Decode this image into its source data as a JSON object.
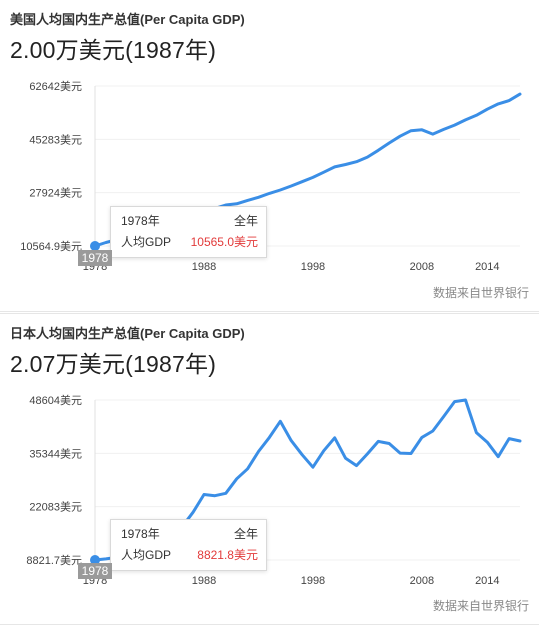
{
  "source_label": "数据来自世界银行",
  "panels": [
    {
      "title": "美国人均国内生产总值(Per Capita GDP)",
      "headline": "2.00万美元(1987年)",
      "tooltip": {
        "year": "1978年",
        "scope": "全年",
        "metric": "人均GDP",
        "value": "10565.0美元"
      },
      "highlight_year": "1978",
      "colors": {
        "line": "#3a8ee6",
        "tooltip_value": "#e23a3a"
      }
    },
    {
      "title": "日本人均国内生产总值(Per Capita GDP)",
      "headline": "2.07万美元(1987年)",
      "tooltip": {
        "year": "1978年",
        "scope": "全年",
        "metric": "人均GDP",
        "value": "8821.8美元"
      },
      "highlight_year": "1978",
      "colors": {
        "line": "#3a8ee6",
        "tooltip_value": "#e23a3a"
      }
    }
  ],
  "chart_data": [
    {
      "type": "line",
      "title": "美国人均国内生产总值(Per Capita GDP)",
      "y_ticks": [
        "62642美元",
        "45283美元",
        "27924美元",
        "10564.9美元"
      ],
      "y_tick_values": [
        62642,
        45283,
        27924,
        10564.9
      ],
      "x_ticks": [
        "1978",
        "1988",
        "1998",
        "2008",
        "2014"
      ],
      "xlim": [
        1978,
        2017
      ],
      "ylim": [
        10564.9,
        62642
      ],
      "x": [
        1978,
        1979,
        1980,
        1981,
        1982,
        1983,
        1984,
        1985,
        1986,
        1987,
        1988,
        1989,
        1990,
        1991,
        1992,
        1993,
        1994,
        1995,
        1996,
        1997,
        1998,
        1999,
        2000,
        2001,
        2002,
        2003,
        2004,
        2005,
        2006,
        2007,
        2008,
        2009,
        2010,
        2011,
        2012,
        2013,
        2014,
        2015,
        2016,
        2017
      ],
      "y": [
        10565,
        11700,
        12600,
        13900,
        14400,
        15500,
        17000,
        18200,
        19000,
        20000,
        21400,
        22800,
        23900,
        24300,
        25400,
        26400,
        27700,
        28800,
        30100,
        31500,
        32900,
        34600,
        36300,
        37100,
        38000,
        39500,
        41700,
        44100,
        46300,
        48100,
        48400,
        47000,
        48500,
        49900,
        51600,
        53100,
        55100,
        56800,
        57900,
        60000
      ]
    },
    {
      "type": "line",
      "title": "日本人均国内生产总值(Per Capita GDP)",
      "y_ticks": [
        "48604美元",
        "35344美元",
        "22083美元",
        "8821.7美元"
      ],
      "y_tick_values": [
        48604,
        35344,
        22083,
        8821.7
      ],
      "x_ticks": [
        "1978",
        "1988",
        "1998",
        "2008",
        "2014"
      ],
      "xlim": [
        1978,
        2017
      ],
      "ylim": [
        8821.7,
        48604
      ],
      "x": [
        1978,
        1979,
        1980,
        1981,
        1982,
        1983,
        1984,
        1985,
        1986,
        1987,
        1988,
        1989,
        1990,
        1991,
        1992,
        1993,
        1994,
        1995,
        1996,
        1997,
        1998,
        1999,
        2000,
        2001,
        2002,
        2003,
        2004,
        2005,
        2006,
        2007,
        2008,
        2009,
        2010,
        2011,
        2012,
        2013,
        2014,
        2015,
        2016,
        2017
      ],
      "y": [
        8822,
        9100,
        9500,
        10400,
        9600,
        10300,
        10800,
        11600,
        17100,
        20700,
        25100,
        24800,
        25400,
        29000,
        31500,
        35800,
        39300,
        43300,
        38500,
        35000,
        31900,
        36000,
        39200,
        34100,
        32300,
        35200,
        38300,
        37800,
        35400,
        35300,
        39300,
        40900,
        44500,
        48200,
        48600,
        40500,
        38100,
        34500,
        39000,
        38400
      ]
    }
  ]
}
